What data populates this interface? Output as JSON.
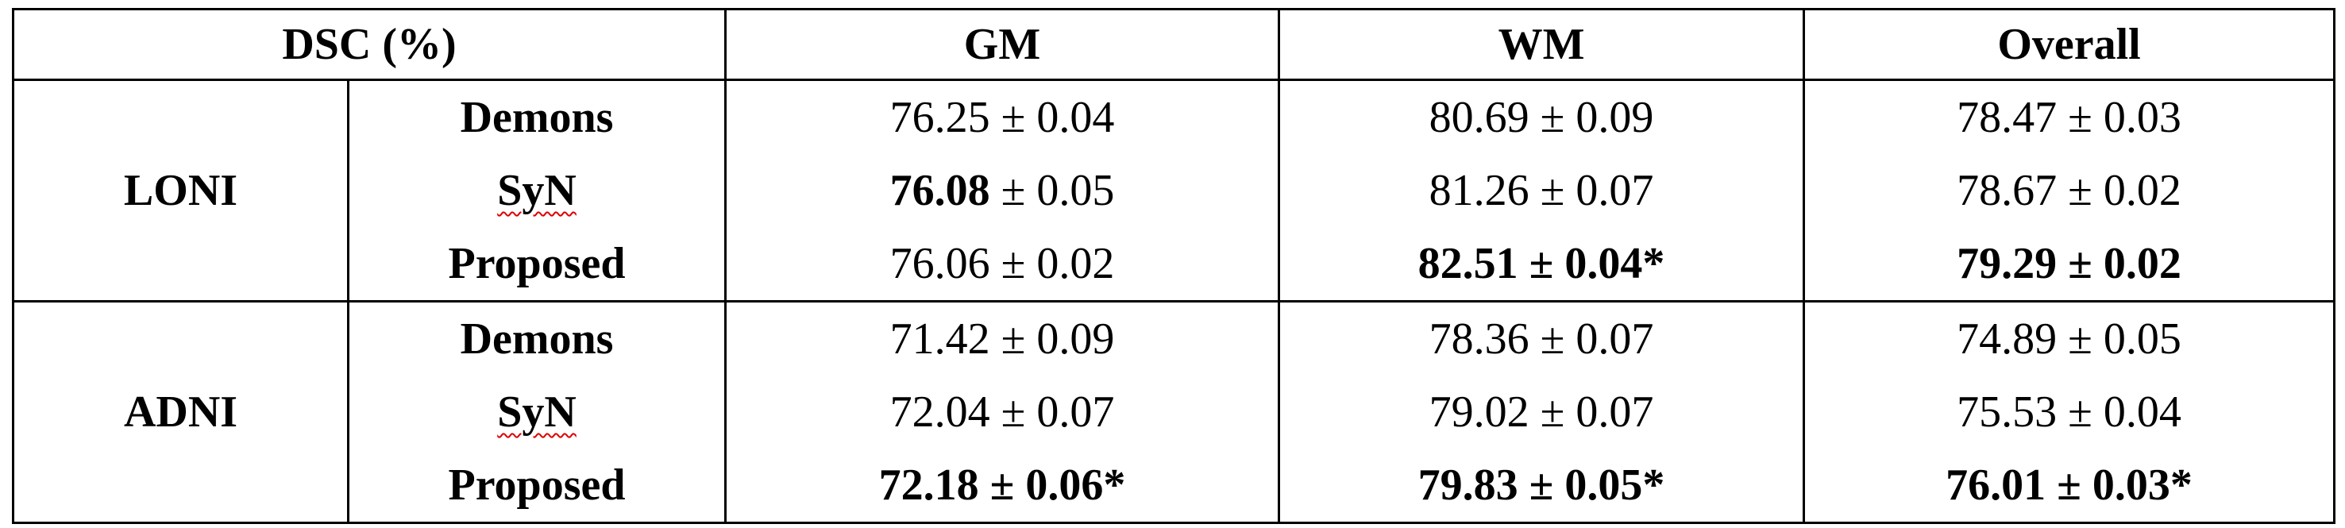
{
  "header": {
    "corner": "DSC (%)",
    "columns": [
      "GM",
      "WM",
      "Overall"
    ]
  },
  "groups": [
    {
      "label": "LONI",
      "rows": [
        {
          "method": "Demons",
          "misspelled": false,
          "cells": [
            [
              {
                "text": "76.25 ± 0.04",
                "bold": false
              }
            ],
            [
              {
                "text": "80.69 ± 0.09",
                "bold": false
              }
            ],
            [
              {
                "text": "78.47 ± 0.03",
                "bold": false
              }
            ]
          ]
        },
        {
          "method": "SyN",
          "misspelled": true,
          "cells": [
            [
              {
                "text": "76.08",
                "bold": true
              },
              {
                "text": " ± 0.05",
                "bold": false
              }
            ],
            [
              {
                "text": "81.26 ± 0.07",
                "bold": false
              }
            ],
            [
              {
                "text": "78.67 ± 0.02",
                "bold": false
              }
            ]
          ]
        },
        {
          "method": "Proposed",
          "misspelled": false,
          "cells": [
            [
              {
                "text": "76.06 ± 0.02",
                "bold": false
              }
            ],
            [
              {
                "text": "82.51 ± 0.04*",
                "bold": true
              }
            ],
            [
              {
                "text": "79.29 ± 0.02",
                "bold": true
              }
            ]
          ]
        }
      ]
    },
    {
      "label": "ADNI",
      "rows": [
        {
          "method": "Demons",
          "misspelled": false,
          "cells": [
            [
              {
                "text": "71.42 ± 0.09",
                "bold": false
              }
            ],
            [
              {
                "text": "78.36 ± 0.07",
                "bold": false
              }
            ],
            [
              {
                "text": "74.89 ± 0.05",
                "bold": false
              }
            ]
          ]
        },
        {
          "method": "SyN",
          "misspelled": true,
          "cells": [
            [
              {
                "text": "72.04 ± 0.07",
                "bold": false
              }
            ],
            [
              {
                "text": "79.02 ± 0.07",
                "bold": false
              }
            ],
            [
              {
                "text": "75.53 ± 0.04",
                "bold": false
              }
            ]
          ]
        },
        {
          "method": "Proposed",
          "misspelled": false,
          "cells": [
            [
              {
                "text": "72.18 ± 0.06*",
                "bold": true
              }
            ],
            [
              {
                "text": "79.83 ± 0.05*",
                "bold": true
              }
            ],
            [
              {
                "text": "76.01 ± 0.03*",
                "bold": true
              }
            ]
          ]
        }
      ]
    }
  ]
}
